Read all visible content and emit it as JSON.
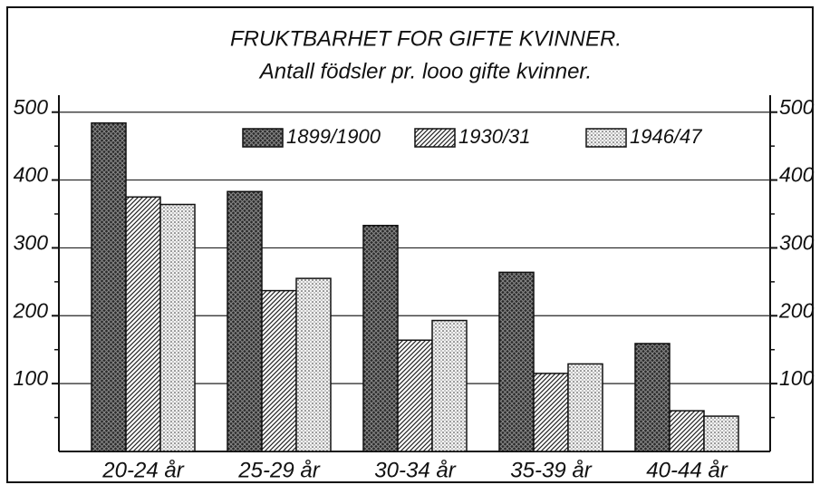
{
  "chart_data": {
    "type": "bar",
    "title": "FRUKTBARHET FOR GIFTE KVINNER.",
    "subtitle": "Antall födsler pr. looo gifte kvinner.",
    "categories": [
      "20-24 år",
      "25-29 år",
      "30-34 år",
      "35-39 år",
      "40-44 år"
    ],
    "series": [
      {
        "name": "1899/1900",
        "color": "#2a2a2a",
        "pattern": "crosshatch",
        "values": [
          484,
          383,
          333,
          264,
          159
        ]
      },
      {
        "name": "1930/31",
        "color": "#888888",
        "pattern": "hatch",
        "values": [
          375,
          237,
          164,
          115,
          60
        ]
      },
      {
        "name": "1946/47",
        "color": "#cccccc",
        "pattern": "dots",
        "values": [
          364,
          255,
          193,
          129,
          52
        ]
      }
    ],
    "ylim": [
      0,
      525
    ],
    "yticks": [
      100,
      200,
      300,
      400,
      500
    ],
    "yminorticks": [
      50,
      150,
      250,
      350,
      450
    ],
    "y2lim": [
      0,
      525
    ],
    "y2ticks": [
      100,
      200,
      300,
      400,
      500
    ],
    "grid": true
  }
}
